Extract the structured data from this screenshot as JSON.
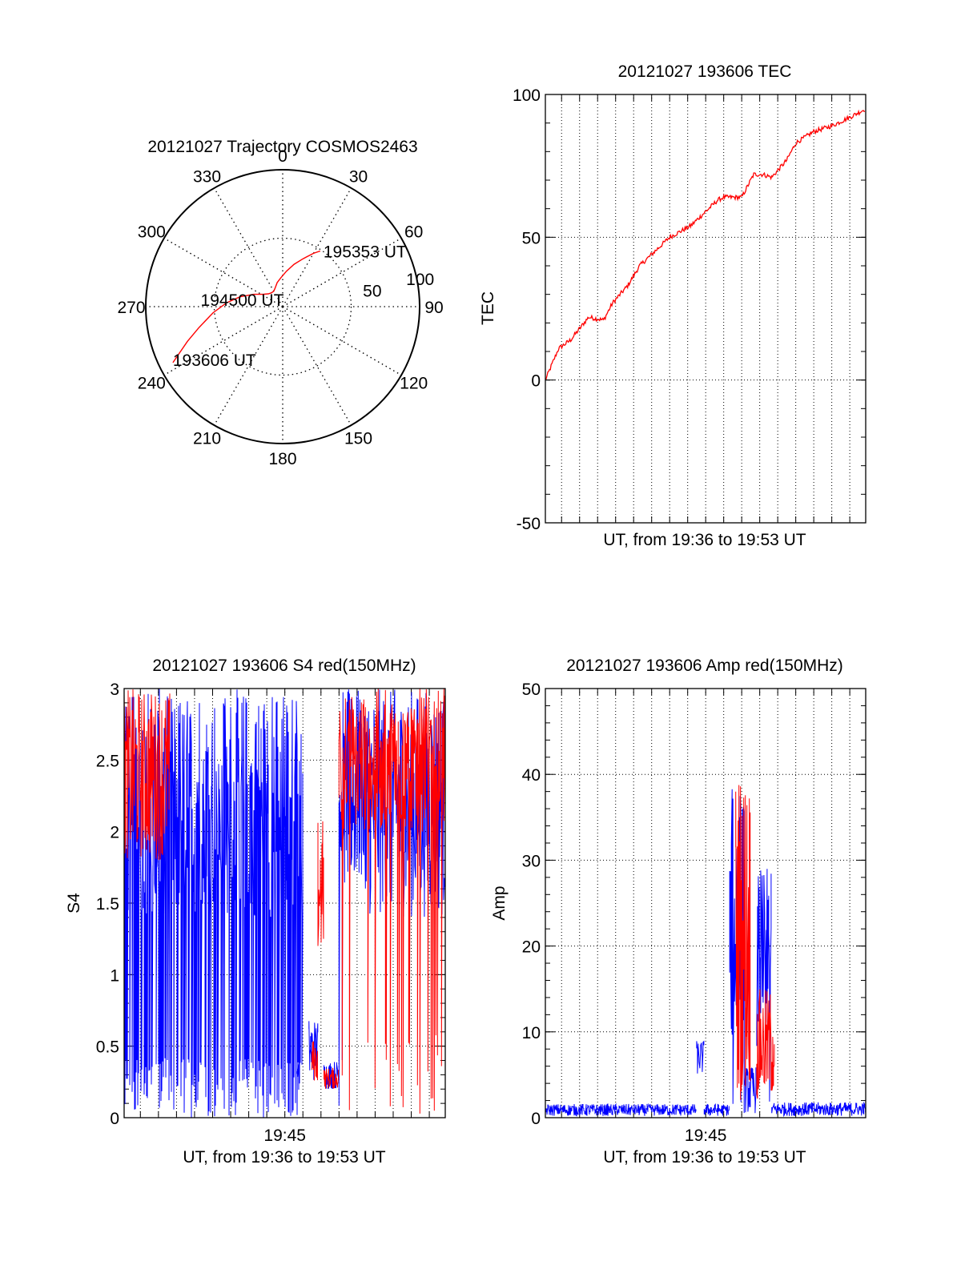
{
  "colors": {
    "red": "#ff0000",
    "blue": "#0000ff",
    "axis": "#000000"
  },
  "chart_data": [
    {
      "id": "polar",
      "type": "scatter",
      "projection": "polar",
      "title": "20121027 Trajectory COSMOS2463",
      "azimuth_labels": [
        "0",
        "30",
        "60",
        "90",
        "120",
        "150",
        "180",
        "210",
        "240",
        "270",
        "300",
        "330"
      ],
      "radial_labels": [
        "50",
        "100"
      ],
      "rlim": [
        0,
        100
      ],
      "grid": true,
      "series": [
        {
          "color": "red",
          "points": [
            [
              243,
              90
            ],
            [
              250,
              74
            ],
            [
              256,
              63
            ],
            [
              265,
              51
            ],
            [
              274,
              41
            ],
            [
              283,
              32
            ],
            [
              293,
              23
            ],
            [
              302,
              17
            ],
            [
              312,
              14
            ],
            [
              321,
              13
            ],
            [
              330,
              13
            ],
            [
              339,
              15
            ],
            [
              347,
              18
            ],
            [
              356,
              21
            ],
            [
              6,
              26
            ],
            [
              15,
              32
            ],
            [
              23,
              38
            ],
            [
              30,
              45
            ],
            [
              34,
              49
            ]
          ]
        }
      ],
      "annotations": [
        {
          "text": "193606 UT",
          "az": 243,
          "r": 90
        },
        {
          "text": "194500 UT",
          "az": 280,
          "r": 30
        },
        {
          "text": "195353 UT",
          "az": 34,
          "r": 49
        }
      ]
    },
    {
      "id": "tec",
      "type": "line",
      "title": "20121027 193606 TEC",
      "xlabel": "UT, from 19:36 to 19:53 UT",
      "ylabel": "TEC",
      "xlim": [
        "19:36:06",
        "19:53:53"
      ],
      "ylim": [
        -50,
        100
      ],
      "yticks": [
        "-50",
        "0",
        "50",
        "100"
      ],
      "grid": true,
      "series": [
        {
          "color": "red",
          "noise": 0.8,
          "x": [
            "19:36:06",
            "19:36:50",
            "19:37:30",
            "19:38:30",
            "19:39:20",
            "19:39:50",
            "19:40:40",
            "19:41:20",
            "19:42:20",
            "19:43:00",
            "19:44:10",
            "19:45:00",
            "19:45:40",
            "19:46:00",
            "19:47:00",
            "19:47:40",
            "19:48:10",
            "19:48:40",
            "19:49:30",
            "19:50:00",
            "19:51:00",
            "19:52:00",
            "19:53:00",
            "19:53:53"
          ],
          "y": [
            0,
            11,
            14,
            22,
            21,
            27,
            33,
            40,
            46,
            50,
            54,
            59,
            63,
            64,
            64,
            72,
            72,
            71,
            77,
            83,
            87,
            89,
            92,
            95
          ]
        }
      ]
    },
    {
      "id": "s4",
      "type": "line",
      "title": "20121027 193606 S4 red(150MHz)",
      "xlabel": "UT, from 19:36 to 19:53 UT",
      "ylabel": "S4",
      "xlim": [
        "19:36:06",
        "19:53:53"
      ],
      "xticks": [
        "19:45"
      ],
      "ylim": [
        0,
        3
      ],
      "yticks": [
        "0",
        "0.5",
        "1",
        "1.5",
        "2",
        "2.5",
        "3"
      ],
      "grid": true,
      "series": [
        {
          "color": "blue",
          "kind": "noise",
          "segments": [
            {
              "from": "19:36:06",
              "to": "19:46:00",
              "low": 1.4,
              "high": 3.0,
              "drops": 0.55
            },
            {
              "from": "19:45:40",
              "to": "19:45:50",
              "low": 0.28,
              "high": 0.38,
              "drops": 0
            },
            {
              "from": "19:46:20",
              "to": "19:46:50",
              "low": 0.25,
              "high": 0.7,
              "drops": 0
            },
            {
              "from": "19:47:10",
              "to": "19:48:00",
              "low": 0.2,
              "high": 0.4,
              "drops": 0
            },
            {
              "from": "19:48:00",
              "to": "19:49:40",
              "low": 1.6,
              "high": 3.0,
              "drops": 0.05
            },
            {
              "from": "19:49:40",
              "to": "19:53:53",
              "low": 1.4,
              "high": 3.0,
              "drops": 0
            }
          ]
        },
        {
          "color": "red",
          "kind": "noise",
          "segments": [
            {
              "from": "19:36:06",
              "to": "19:38:40",
              "low": 1.8,
              "high": 3.0,
              "drops": 0
            },
            {
              "from": "19:46:50",
              "to": "19:47:10",
              "low": 1.1,
              "high": 2.1,
              "drops": 0
            },
            {
              "from": "19:46:30",
              "to": "19:46:50",
              "low": 0.25,
              "high": 0.55,
              "drops": 0
            },
            {
              "from": "19:47:10",
              "to": "19:48:00",
              "low": 0.2,
              "high": 0.35,
              "drops": 0
            },
            {
              "from": "19:48:00",
              "to": "19:53:53",
              "low": 2.0,
              "high": 3.0,
              "drops": 0.15
            }
          ]
        }
      ]
    },
    {
      "id": "amp",
      "type": "line",
      "title": "20121027 193606 Amp red(150MHz)",
      "xlabel": "UT, from 19:36 to 19:53 UT",
      "ylabel": "Amp",
      "xlim": [
        "19:36:06",
        "19:53:53"
      ],
      "xticks": [
        "19:45"
      ],
      "ylim": [
        0,
        50
      ],
      "yticks": [
        "0",
        "10",
        "20",
        "30",
        "40",
        "50"
      ],
      "grid": true,
      "series": [
        {
          "color": "blue",
          "kind": "noise",
          "segments": [
            {
              "from": "19:36:06",
              "to": "19:44:30",
              "low": 0.2,
              "high": 1.6,
              "drops": 0
            },
            {
              "from": "19:44:30",
              "to": "19:44:55",
              "low": 5.0,
              "high": 9.0,
              "drops": 0
            },
            {
              "from": "19:44:55",
              "to": "19:46:20",
              "low": 0.2,
              "high": 1.6,
              "drops": 0
            },
            {
              "from": "19:46:20",
              "to": "19:47:10",
              "low": 8.0,
              "high": 38.5,
              "drops": 0.1
            },
            {
              "from": "19:47:10",
              "to": "19:47:50",
              "low": 0.5,
              "high": 6.0,
              "drops": 0
            },
            {
              "from": "19:47:50",
              "to": "19:48:40",
              "low": 8.0,
              "high": 29.0,
              "drops": 0.1
            },
            {
              "from": "19:48:40",
              "to": "19:53:53",
              "low": 0.2,
              "high": 1.8,
              "drops": 0
            }
          ]
        },
        {
          "color": "red",
          "kind": "noise",
          "segments": [
            {
              "from": "19:46:40",
              "to": "19:47:30",
              "low": 2.0,
              "high": 41.0,
              "drops": 0
            },
            {
              "from": "19:47:50",
              "to": "19:48:50",
              "low": 2.0,
              "high": 15.0,
              "drops": 0
            }
          ]
        }
      ]
    }
  ]
}
